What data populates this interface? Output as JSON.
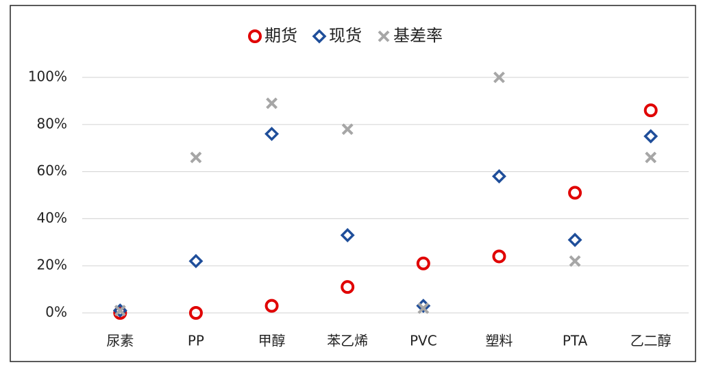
{
  "chart_data": {
    "type": "scatter",
    "categories": [
      "尿素",
      "PP",
      "甲醇",
      "苯乙烯",
      "PVC",
      "塑料",
      "PTA",
      "乙二醇"
    ],
    "series": [
      {
        "name": "期货",
        "color": "#e00000",
        "marker": "circle",
        "values": [
          0,
          0,
          3,
          11,
          21,
          24,
          51,
          86
        ]
      },
      {
        "name": "现货",
        "color": "#1f4e9a",
        "marker": "diamond",
        "values": [
          1,
          22,
          76,
          33,
          3,
          58,
          31,
          75
        ]
      },
      {
        "name": "基差率",
        "color": "#a6a6a6",
        "marker": "x",
        "values": [
          1,
          66,
          89,
          78,
          2,
          100,
          22,
          66
        ]
      }
    ],
    "ylim": [
      0,
      100
    ],
    "yticks": [
      {
        "value": 0,
        "label": "0%"
      },
      {
        "value": 20,
        "label": "20%"
      },
      {
        "value": 40,
        "label": "40%"
      },
      {
        "value": 60,
        "label": "60%"
      },
      {
        "value": 80,
        "label": "80%"
      },
      {
        "value": 100,
        "label": "100%"
      }
    ],
    "grid": true,
    "legend": "top"
  }
}
